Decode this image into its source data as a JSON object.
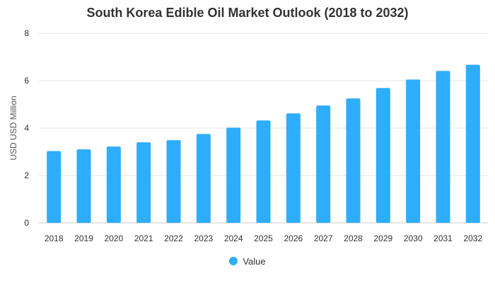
{
  "colors": {
    "bar": "#2EADFC",
    "grid": "#e6e6e6",
    "axis": "#cccccc",
    "text": "#333333"
  },
  "chart_data": {
    "type": "bar",
    "title": "South Korea Edible Oil Market Outlook (2018 to 2032)",
    "xlabel": "",
    "ylabel": "USD USD Million",
    "ylim": [
      0,
      8
    ],
    "yticks": [
      0,
      2,
      4,
      6,
      8
    ],
    "grid": true,
    "legend_position": "bottom",
    "categories": [
      "2018",
      "2019",
      "2020",
      "2021",
      "2022",
      "2023",
      "2024",
      "2025",
      "2026",
      "2027",
      "2028",
      "2029",
      "2030",
      "2031",
      "2032"
    ],
    "series": [
      {
        "name": "Value",
        "values": [
          3.03,
          3.1,
          3.22,
          3.4,
          3.49,
          3.75,
          4.02,
          4.32,
          4.62,
          4.95,
          5.25,
          5.69,
          6.05,
          6.41,
          6.67
        ]
      }
    ]
  }
}
